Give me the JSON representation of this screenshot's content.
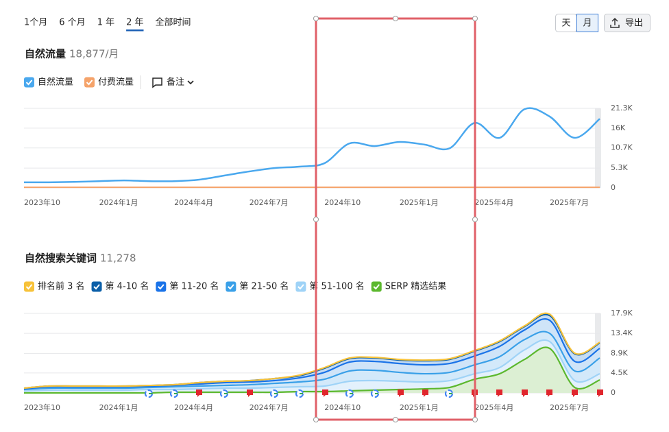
{
  "controls": {
    "ranges": [
      "1个月",
      "6 个月",
      "1 年",
      "2 年",
      "全部时间"
    ],
    "selected_range": "2 年",
    "granularity": [
      "天",
      "月"
    ],
    "selected_granularity": "月",
    "export": "导出"
  },
  "chart_data": [
    {
      "type": "line",
      "title": "自然流量",
      "summary": "18,877/月",
      "legend_extra": "备注",
      "x": [
        "2023年10",
        null,
        null,
        "2024年1月",
        null,
        null,
        "2024年4月",
        null,
        null,
        "2024年7月",
        null,
        null,
        "2024年10",
        null,
        null,
        "2025年1月",
        null,
        null,
        "2025年4月",
        null,
        null,
        "2025年7月",
        null,
        null
      ],
      "series": [
        {
          "name": "自然流量",
          "color": "#4aa8ee",
          "values": [
            1500,
            1500,
            1600,
            1800,
            2000,
            1800,
            1800,
            2200,
            3300,
            4400,
            5300,
            5700,
            6600,
            11900,
            11200,
            12300,
            11600,
            10600,
            17400,
            13400,
            21100,
            19100,
            13400,
            18500
          ]
        },
        {
          "name": "付费流量",
          "color": "#f5a36a",
          "values": [
            150,
            150,
            150,
            150,
            150,
            150,
            150,
            150,
            150,
            150,
            150,
            150,
            150,
            150,
            150,
            150,
            150,
            150,
            150,
            150,
            150,
            150,
            150,
            150
          ]
        }
      ],
      "ylim": [
        0,
        21300
      ],
      "yticks": [
        0,
        {
          "value": 5300,
          "label": "5.3K"
        },
        {
          "value": 10700,
          "label": "10.7K"
        },
        {
          "value": 16000,
          "label": "16K"
        },
        {
          "value": 21300,
          "label": "21.3K"
        }
      ],
      "grid": true
    },
    {
      "type": "stacked_area",
      "title": "自然搜索关键词",
      "summary": "11,278",
      "x": [
        "2023年10",
        null,
        null,
        "2024年1月",
        null,
        null,
        "2024年4月",
        null,
        null,
        "2024年7月",
        null,
        null,
        "2024年10",
        null,
        null,
        "2025年1月",
        null,
        null,
        "2025年4月",
        null,
        null,
        "2025年7月",
        null,
        null
      ],
      "series": [
        {
          "name": "SERP 精选结果",
          "color": "#5cb82e",
          "fill": "#dcefd3",
          "values": [
            0,
            0,
            0,
            0,
            0,
            0,
            150,
            150,
            150,
            150,
            150,
            310,
            310,
            460,
            620,
            770,
            920,
            1230,
            3080,
            4310,
            7550,
            10010,
            1230,
            2930
          ]
        },
        {
          "name": "第 51-100 名",
          "color": "#9fd3f7",
          "fill": "#e3f1fc",
          "values": [
            460,
            620,
            620,
            620,
            620,
            770,
            620,
            770,
            920,
            920,
            1080,
            1080,
            1230,
            2160,
            2160,
            1850,
            1540,
            1540,
            1230,
            1390,
            2160,
            1540,
            1540,
            1390
          ]
        },
        {
          "name": "第 21-50 名",
          "color": "#3aa0e8",
          "fill": "#d3e9fa",
          "values": [
            310,
            460,
            460,
            460,
            460,
            460,
            620,
            620,
            620,
            770,
            920,
            1080,
            1540,
            2310,
            2310,
            2000,
            1850,
            1850,
            2000,
            2460,
            2310,
            1850,
            2160,
            3540
          ]
        },
        {
          "name": "第 11-20 名",
          "color": "#1a73e8",
          "fill": "#cfe4f8",
          "values": [
            150,
            310,
            310,
            310,
            310,
            310,
            310,
            460,
            620,
            620,
            620,
            920,
            1540,
            2000,
            2000,
            2000,
            2000,
            2000,
            2000,
            2310,
            2160,
            2930,
            2160,
            2160
          ]
        },
        {
          "name": "第 4-10 名",
          "color": "#0b5fa8",
          "fill": "#c5dcf3",
          "values": [
            150,
            150,
            150,
            150,
            150,
            150,
            150,
            310,
            310,
            310,
            460,
            460,
            920,
            770,
            770,
            770,
            920,
            920,
            1080,
            1080,
            770,
            1080,
            1690,
            1230
          ]
        },
        {
          "name": "排名前 3 名",
          "color": "#f7c23a",
          "fill": "#fbe9b8",
          "values": [
            0,
            0,
            0,
            0,
            0,
            0,
            0,
            0,
            0,
            0,
            0,
            150,
            150,
            150,
            150,
            150,
            150,
            150,
            150,
            150,
            150,
            310,
            150,
            150
          ]
        }
      ],
      "legend_order": [
        5,
        4,
        3,
        2,
        1,
        0
      ],
      "ylim": [
        0,
        17900
      ],
      "yticks": [
        0,
        {
          "value": 4500,
          "label": "4.5K"
        },
        {
          "value": 8900,
          "label": "8.9K"
        },
        {
          "value": 13400,
          "label": "13.4K"
        },
        {
          "value": 17900,
          "label": "17.9K"
        }
      ],
      "grid": true
    }
  ]
}
